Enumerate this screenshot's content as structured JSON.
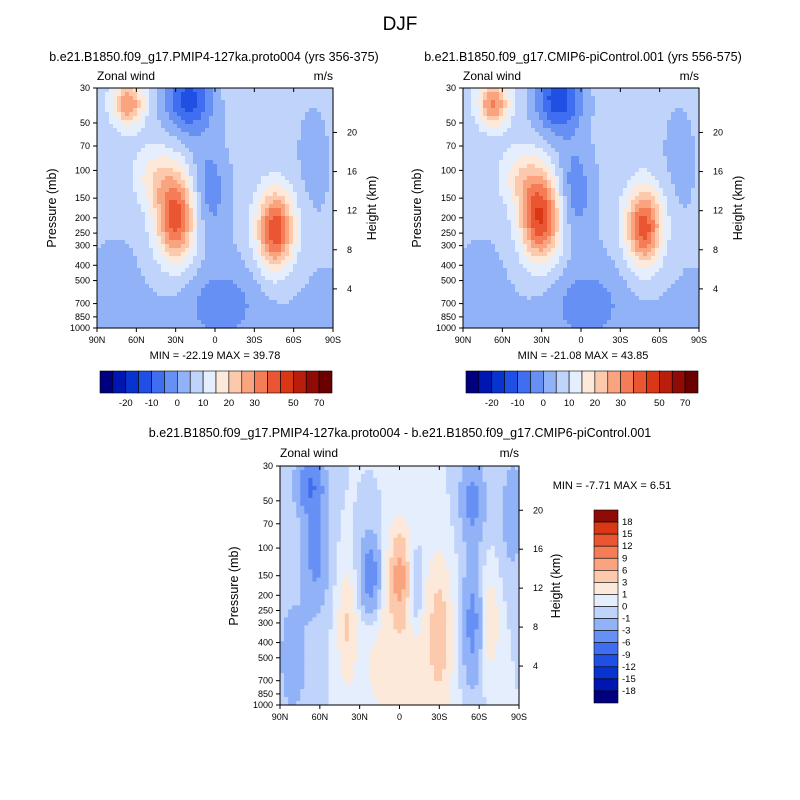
{
  "page_title": "DJF",
  "chart_data": [
    {
      "type": "contour",
      "title": "b.e21.B1850.f09_g17.PMIP4-127ka.proto004 (yrs 356-375)",
      "left_string": "Zonal wind",
      "right_string": "m/s",
      "ylabel": "Pressure (mb)",
      "ylabel_right": "Height (km)",
      "x_ticks": [
        "90N",
        "60N",
        "30N",
        "0",
        "30S",
        "60S",
        "90S"
      ],
      "y_ticks": [
        30,
        50,
        70,
        100,
        150,
        200,
        250,
        300,
        400,
        500,
        700,
        850,
        1000
      ],
      "height_ticks": [
        4,
        8,
        12,
        16,
        20
      ],
      "xlim": [
        90,
        -90
      ],
      "ylim": [
        1000,
        30
      ],
      "y_scale": "log",
      "stats": "MIN = -22.19   MAX =  39.78",
      "field_min": -22.19,
      "field_max": 39.78,
      "levels": [
        -25,
        -20,
        -15,
        -10,
        -5,
        0,
        5,
        10,
        15,
        20,
        25,
        30,
        35,
        40,
        50,
        60,
        70
      ],
      "colorbar_labels": [
        "-20",
        "-10",
        "0",
        "10",
        "20",
        "30",
        "50",
        "70"
      ],
      "features": [
        {
          "lat": 66,
          "p": 38,
          "amp": 22,
          "sx": 8,
          "sy": 0.22
        },
        {
          "lat": 46,
          "p": 110,
          "amp": 10,
          "sx": 12,
          "sy": 0.3
        },
        {
          "lat": 30,
          "p": 200,
          "amp": 32,
          "sx": 11,
          "sy": 0.45
        },
        {
          "lat": -46,
          "p": 240,
          "amp": 34,
          "sx": 10,
          "sy": 0.4
        },
        {
          "lat": 20,
          "p": 35,
          "amp": -20,
          "sx": 13,
          "sy": 0.35
        },
        {
          "lat": 5,
          "p": 130,
          "amp": -10,
          "sx": 10,
          "sy": 0.5
        },
        {
          "lat": -5,
          "p": 700,
          "amp": -8,
          "sx": 18,
          "sy": 0.35
        },
        {
          "lat": -75,
          "p": 70,
          "amp": -4,
          "sx": 10,
          "sy": 0.6
        },
        {
          "lat": 75,
          "p": 700,
          "amp": -3,
          "sx": 10,
          "sy": 0.5
        }
      ]
    },
    {
      "type": "contour",
      "title": "b.e21.B1850.f09_g17.CMIP6-piControl.001 (yrs 556-575)",
      "left_string": "Zonal wind",
      "right_string": "m/s",
      "ylabel": "Pressure (mb)",
      "ylabel_right": "Height (km)",
      "x_ticks": [
        "90N",
        "60N",
        "30N",
        "0",
        "30S",
        "60S",
        "90S"
      ],
      "y_ticks": [
        30,
        50,
        70,
        100,
        150,
        200,
        250,
        300,
        400,
        500,
        700,
        850,
        1000
      ],
      "height_ticks": [
        4,
        8,
        12,
        16,
        20
      ],
      "xlim": [
        90,
        -90
      ],
      "ylim": [
        1000,
        30
      ],
      "y_scale": "log",
      "stats": "MIN = -21.08   MAX =  43.85",
      "field_min": -21.08,
      "field_max": 43.85,
      "levels": [
        -25,
        -20,
        -15,
        -10,
        -5,
        0,
        5,
        10,
        15,
        20,
        25,
        30,
        35,
        40,
        50,
        60,
        70
      ],
      "colorbar_labels": [
        "-20",
        "-10",
        "0",
        "10",
        "20",
        "30",
        "50",
        "70"
      ],
      "features": [
        {
          "lat": 67,
          "p": 38,
          "amp": 24,
          "sx": 8,
          "sy": 0.22
        },
        {
          "lat": 46,
          "p": 110,
          "amp": 10,
          "sx": 12,
          "sy": 0.3
        },
        {
          "lat": 31,
          "p": 200,
          "amp": 35,
          "sx": 11,
          "sy": 0.45
        },
        {
          "lat": -48,
          "p": 230,
          "amp": 32,
          "sx": 10,
          "sy": 0.4
        },
        {
          "lat": 17,
          "p": 35,
          "amp": -21,
          "sx": 13,
          "sy": 0.35
        },
        {
          "lat": 5,
          "p": 130,
          "amp": -10,
          "sx": 10,
          "sy": 0.5
        },
        {
          "lat": -5,
          "p": 700,
          "amp": -8,
          "sx": 18,
          "sy": 0.35
        },
        {
          "lat": -75,
          "p": 70,
          "amp": -4,
          "sx": 10,
          "sy": 0.6
        },
        {
          "lat": 75,
          "p": 700,
          "amp": -3,
          "sx": 10,
          "sy": 0.5
        }
      ]
    },
    {
      "type": "contour",
      "title": "b.e21.B1850.f09_g17.PMIP4-127ka.proto004 - b.e21.B1850.f09_g17.CMIP6-piControl.001",
      "left_string": "Zonal wind",
      "right_string": "m/s",
      "ylabel": "Pressure (mb)",
      "ylabel_right": "Height (km)",
      "x_ticks": [
        "90N",
        "60N",
        "30N",
        "0",
        "30S",
        "60S",
        "90S"
      ],
      "y_ticks": [
        30,
        50,
        70,
        100,
        150,
        200,
        250,
        300,
        400,
        500,
        700,
        850,
        1000
      ],
      "height_ticks": [
        4,
        8,
        12,
        16,
        20
      ],
      "xlim": [
        90,
        -90
      ],
      "ylim": [
        1000,
        30
      ],
      "y_scale": "log",
      "stats": "MIN =  -7.71   MAX =   6.51",
      "field_min": -7.71,
      "field_max": 6.51,
      "levels": [
        -18,
        -15,
        -12,
        -9,
        -6,
        -3,
        -1,
        0,
        1,
        3,
        6,
        9,
        12,
        15,
        18
      ],
      "colorbar_labels": [
        "18",
        "15",
        "12",
        "9",
        "6",
        "3",
        "1",
        "0",
        "-1",
        "-3",
        "-6",
        "-9",
        "-12",
        "-15",
        "-18"
      ],
      "features": [
        {
          "lat": 67,
          "p": 40,
          "amp": -6,
          "sx": 7,
          "sy": 0.3
        },
        {
          "lat": 63,
          "p": 110,
          "amp": -4,
          "sx": 6,
          "sy": 0.5
        },
        {
          "lat": 40,
          "p": 320,
          "amp": 3,
          "sx": 4,
          "sy": 0.5
        },
        {
          "lat": 22,
          "p": 150,
          "amp": -5,
          "sx": 5,
          "sy": 0.4
        },
        {
          "lat": 0,
          "p": 150,
          "amp": 7,
          "sx": 5,
          "sy": 0.45
        },
        {
          "lat": -12,
          "p": 200,
          "amp": -2,
          "sx": 4,
          "sy": 0.4
        },
        {
          "lat": -30,
          "p": 350,
          "amp": 4,
          "sx": 6,
          "sy": 0.7
        },
        {
          "lat": -55,
          "p": 50,
          "amp": -4,
          "sx": 6,
          "sy": 0.4
        },
        {
          "lat": -55,
          "p": 300,
          "amp": -4,
          "sx": 5,
          "sy": 0.6
        },
        {
          "lat": -68,
          "p": 300,
          "amp": 2,
          "sx": 5,
          "sy": 0.5
        },
        {
          "lat": 0,
          "p": 500,
          "amp": 2,
          "sx": 20,
          "sy": 0.8
        },
        {
          "lat": 80,
          "p": 500,
          "amp": -1.5,
          "sx": 10,
          "sy": 0.8
        },
        {
          "lat": -85,
          "p": 60,
          "amp": -2,
          "sx": 6,
          "sy": 0.6
        }
      ]
    }
  ],
  "colors": {
    "fill_colors": [
      "#00007f",
      "#0016b0",
      "#0733cf",
      "#1f4fe3",
      "#3f6ef0",
      "#6790f5",
      "#92b2f8",
      "#c0d3fb",
      "#e4eefd",
      "#fde9d9",
      "#fcc9ac",
      "#f9a47e",
      "#f47c56",
      "#ea5631",
      "#d93716",
      "#b91e0c",
      "#8f0b06",
      "#6a0000"
    ],
    "diff_colors": [
      "#00007f",
      "#0016b0",
      "#0733cf",
      "#1f4fe3",
      "#3f6ef0",
      "#6790f5",
      "#92b2f8",
      "#c0d3fb",
      "#e4eefd",
      "#fde9d9",
      "#fcc9ac",
      "#f9a47e",
      "#f47c56",
      "#ea5631",
      "#d93716",
      "#8f0b06"
    ]
  }
}
